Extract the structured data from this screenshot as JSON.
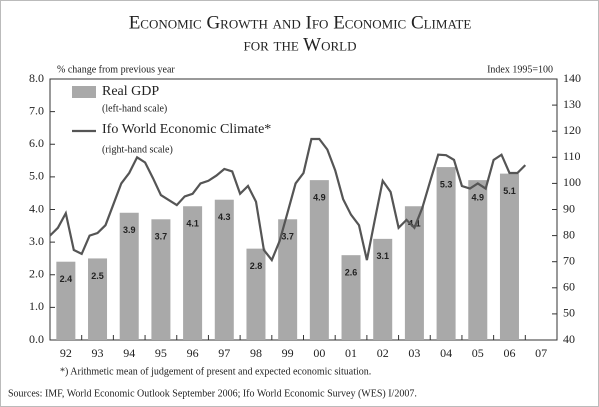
{
  "chart_data": {
    "type": "bar_line",
    "title": [
      "Economic Growth and Ifo Economic Climate",
      "for the World"
    ],
    "ylabel": "% change from previous year",
    "y2label": "Index 1995=100",
    "categories": [
      "92",
      "93",
      "94",
      "95",
      "96",
      "97",
      "98",
      "99",
      "00",
      "01",
      "02",
      "03",
      "04",
      "05",
      "06",
      "07"
    ],
    "series": [
      {
        "name": "Real GDP",
        "note": "(left-hand scale)",
        "color": "#a9a9a9",
        "kind": "bar",
        "values": [
          2.4,
          2.5,
          3.9,
          3.7,
          4.1,
          4.3,
          2.8,
          3.7,
          4.9,
          2.6,
          3.1,
          4.1,
          5.3,
          4.9,
          5.1,
          null
        ]
      },
      {
        "name": "Ifo World Economic Climate*",
        "note": "(right-hand scale)",
        "color": "#555555",
        "kind": "line",
        "axis": "y2",
        "x": [
          1991.5,
          1991.75,
          1992,
          1992.25,
          1992.5,
          1992.75,
          1993,
          1993.25,
          1993.5,
          1993.75,
          1994,
          1994.25,
          1994.5,
          1994.75,
          1995,
          1995.25,
          1995.5,
          1995.75,
          1996,
          1996.25,
          1996.5,
          1996.75,
          1997,
          1997.25,
          1997.5,
          1997.75,
          1998,
          1998.25,
          1998.5,
          1998.75,
          1999,
          1999.25,
          1999.5,
          1999.75,
          2000,
          2000.25,
          2000.5,
          2000.75,
          2001,
          2001.25,
          2001.5,
          2001.75,
          2002,
          2002.25,
          2002.5,
          2002.75,
          2003,
          2003.25,
          2003.5,
          2003.75,
          2004,
          2004.25,
          2004.5,
          2004.75,
          2005,
          2005.25,
          2005.5,
          2005.75,
          2006,
          2006.25,
          2006.5
        ],
        "values": [
          80,
          83,
          88.6,
          74.5,
          73,
          80,
          81,
          84,
          92,
          100,
          104,
          110,
          108,
          102,
          95.5,
          93.6,
          91.7,
          95,
          96,
          100,
          101,
          103,
          105.5,
          104.6,
          96,
          99,
          93,
          74.5,
          70.6,
          78,
          89,
          100,
          104,
          117,
          117,
          113,
          105,
          94,
          88,
          84,
          70.6,
          86,
          101,
          96.7,
          83,
          86,
          83,
          90.6,
          101,
          111,
          110.8,
          109,
          99,
          98,
          100,
          98,
          109,
          111,
          104,
          104,
          107
        ]
      }
    ],
    "ylim": [
      0,
      8
    ],
    "yticks": [
      {
        "value": 0,
        "label": "0.0"
      },
      {
        "value": 1,
        "label": "1.0"
      },
      {
        "value": 2,
        "label": "2.0"
      },
      {
        "value": 3,
        "label": "3.0"
      },
      {
        "value": 4,
        "label": "4.0"
      },
      {
        "value": 5,
        "label": "5.0"
      },
      {
        "value": 6,
        "label": "6.0"
      },
      {
        "value": 7,
        "label": "7.0"
      },
      {
        "value": 8,
        "label": "8.0"
      }
    ],
    "y2lim": [
      40,
      140
    ],
    "y2ticks": [
      40,
      50,
      60,
      70,
      80,
      90,
      100,
      110,
      120,
      130,
      140
    ],
    "footnote": "*) Arithmetic mean of judgement of present and expected economic situation.",
    "source": "Sources: IMF, World Economic Outlook September 2006; Ifo World Economic Survey (WES) I/2007."
  }
}
